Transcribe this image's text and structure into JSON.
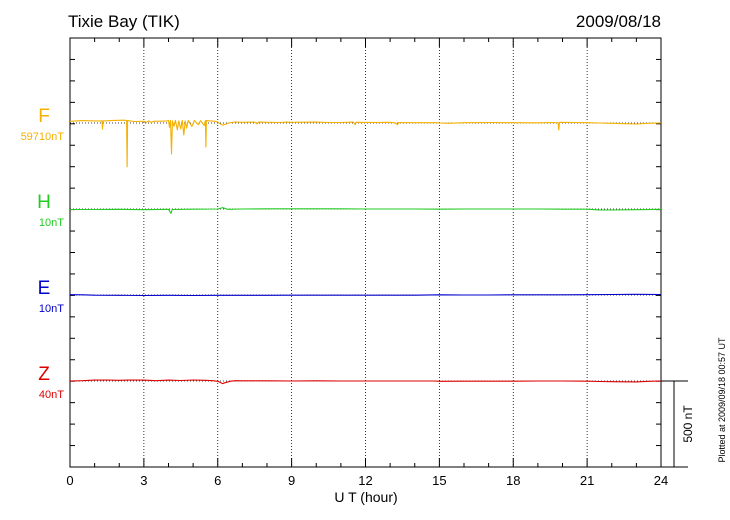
{
  "header": {
    "station": "Tixie Bay (TIK)",
    "date": "2009/08/18"
  },
  "footer": {
    "plotted": "Plotted at 2009/09/18 00:57 UT"
  },
  "scale": {
    "label": "500 nT",
    "nT": 500
  },
  "chart_data": {
    "type": "line",
    "xlabel": "U T (hour)",
    "xlim": [
      0,
      24
    ],
    "xticks": [
      0,
      3,
      6,
      9,
      12,
      15,
      18,
      21,
      24
    ],
    "xtick_labels": [
      "0",
      "3",
      "6",
      "9",
      "12",
      "15",
      "18",
      "21",
      "24"
    ],
    "grid": true,
    "y_units": "nT relative to channel baseline",
    "series": [
      {
        "name": "F",
        "value_label": "59710nT",
        "color": "#f5b000",
        "points": [
          [
            0,
            10
          ],
          [
            0.5,
            14
          ],
          [
            1.0,
            12
          ],
          [
            1.3,
            12
          ],
          [
            1.32,
            -35
          ],
          [
            1.34,
            12
          ],
          [
            1.8,
            15
          ],
          [
            2.2,
            16
          ],
          [
            2.3,
            14
          ],
          [
            2.32,
            -255
          ],
          [
            2.34,
            14
          ],
          [
            2.6,
            9
          ],
          [
            3.0,
            10
          ],
          [
            3.1,
            4
          ],
          [
            3.2,
            12
          ],
          [
            3.3,
            3
          ],
          [
            3.4,
            10
          ],
          [
            3.9,
            11
          ],
          [
            4.0,
            15
          ],
          [
            4.04,
            -25
          ],
          [
            4.08,
            15
          ],
          [
            4.12,
            -180
          ],
          [
            4.16,
            12
          ],
          [
            4.22,
            -20
          ],
          [
            4.28,
            15
          ],
          [
            4.36,
            -40
          ],
          [
            4.42,
            12
          ],
          [
            4.5,
            -35
          ],
          [
            4.56,
            15
          ],
          [
            4.62,
            -70
          ],
          [
            4.68,
            12
          ],
          [
            4.74,
            -30
          ],
          [
            4.8,
            15
          ],
          [
            4.95,
            -20
          ],
          [
            5.05,
            15
          ],
          [
            5.2,
            -10
          ],
          [
            5.3,
            14
          ],
          [
            5.45,
            -15
          ],
          [
            5.5,
            14
          ],
          [
            5.52,
            -140
          ],
          [
            5.54,
            14
          ],
          [
            5.7,
            12
          ],
          [
            5.9,
            10
          ],
          [
            6.0,
            5
          ],
          [
            6.1,
            -5
          ],
          [
            6.2,
            -12
          ],
          [
            6.35,
            -5
          ],
          [
            6.5,
            2
          ],
          [
            6.7,
            6
          ],
          [
            7.0,
            4
          ],
          [
            7.5,
            5
          ],
          [
            7.6,
            -5
          ],
          [
            7.65,
            5
          ],
          [
            8.0,
            4
          ],
          [
            8.5,
            3
          ],
          [
            8.8,
            5
          ],
          [
            9.0,
            4
          ],
          [
            10.0,
            5
          ],
          [
            10.5,
            3
          ],
          [
            11.0,
            3
          ],
          [
            11.5,
            5
          ],
          [
            11.58,
            -10
          ],
          [
            11.62,
            4
          ],
          [
            12.5,
            3
          ],
          [
            13.0,
            4
          ],
          [
            13.2,
            1
          ],
          [
            13.3,
            -10
          ],
          [
            13.35,
            3
          ],
          [
            14.0,
            2
          ],
          [
            14.6,
            2
          ],
          [
            14.9,
            2
          ],
          [
            15.0,
            0
          ],
          [
            15.4,
            -2
          ],
          [
            16.0,
            2
          ],
          [
            17.0,
            3
          ],
          [
            18.0,
            2
          ],
          [
            19.0,
            1
          ],
          [
            19.5,
            3
          ],
          [
            19.82,
            2
          ],
          [
            19.85,
            -40
          ],
          [
            19.88,
            4
          ],
          [
            20.5,
            3
          ],
          [
            21.0,
            2
          ],
          [
            21.5,
            0
          ],
          [
            22.0,
            -2
          ],
          [
            22.5,
            -4
          ],
          [
            23.0,
            -6
          ],
          [
            23.5,
            -2
          ],
          [
            24.0,
            0
          ]
        ]
      },
      {
        "name": "H",
        "value_label": "10nT",
        "color": "#22cc22",
        "points": [
          [
            0,
            -3
          ],
          [
            1.0,
            -3
          ],
          [
            2.0,
            -2
          ],
          [
            3.0,
            -4
          ],
          [
            4.0,
            -2
          ],
          [
            4.1,
            -25
          ],
          [
            4.15,
            -3
          ],
          [
            5.0,
            -1
          ],
          [
            6.0,
            0
          ],
          [
            6.2,
            8
          ],
          [
            6.4,
            -2
          ],
          [
            7.0,
            0
          ],
          [
            8.0,
            1
          ],
          [
            9.0,
            1
          ],
          [
            10.0,
            1
          ],
          [
            11.0,
            1
          ],
          [
            12.0,
            0
          ],
          [
            13.0,
            0
          ],
          [
            14.0,
            0
          ],
          [
            15.0,
            -1
          ],
          [
            16.0,
            0
          ],
          [
            17.0,
            0
          ],
          [
            18.0,
            0
          ],
          [
            19.0,
            0
          ],
          [
            20.0,
            -1
          ],
          [
            21.0,
            -1
          ],
          [
            21.5,
            -5
          ],
          [
            22.0,
            -6
          ],
          [
            23.0,
            -4
          ],
          [
            24.0,
            -2
          ]
        ]
      },
      {
        "name": "E",
        "value_label": "10nT",
        "color": "#0000cc",
        "points": [
          [
            0,
            2
          ],
          [
            0.5,
            1
          ],
          [
            1.0,
            -1
          ],
          [
            2.0,
            -2
          ],
          [
            3.0,
            -3
          ],
          [
            4.0,
            -2
          ],
          [
            5.0,
            -3
          ],
          [
            6.0,
            -2
          ],
          [
            7.0,
            -2
          ],
          [
            8.0,
            -2
          ],
          [
            9.0,
            -1
          ],
          [
            10.0,
            -1
          ],
          [
            11.0,
            -1
          ],
          [
            12.0,
            -1
          ],
          [
            13.0,
            -1
          ],
          [
            14.0,
            -1
          ],
          [
            15.0,
            1
          ],
          [
            16.0,
            0
          ],
          [
            17.0,
            0
          ],
          [
            18.0,
            1
          ],
          [
            19.0,
            1
          ],
          [
            20.0,
            1
          ],
          [
            21.0,
            2
          ],
          [
            22.0,
            3
          ],
          [
            23.0,
            4
          ],
          [
            24.0,
            3
          ]
        ]
      },
      {
        "name": "Z",
        "value_label": "40nT",
        "color": "#dd0000",
        "points": [
          [
            0,
            0
          ],
          [
            0.5,
            2
          ],
          [
            1.0,
            5
          ],
          [
            1.5,
            6
          ],
          [
            2.0,
            4
          ],
          [
            2.5,
            6
          ],
          [
            3.0,
            5
          ],
          [
            3.5,
            2
          ],
          [
            4.0,
            5
          ],
          [
            4.5,
            3
          ],
          [
            5.0,
            6
          ],
          [
            5.5,
            4
          ],
          [
            5.8,
            2
          ],
          [
            6.0,
            -2
          ],
          [
            6.1,
            -8
          ],
          [
            6.2,
            -15
          ],
          [
            6.3,
            -10
          ],
          [
            6.5,
            -2
          ],
          [
            6.7,
            2
          ],
          [
            7.0,
            1
          ],
          [
            8.0,
            1
          ],
          [
            9.0,
            0
          ],
          [
            10.0,
            1
          ],
          [
            11.0,
            0
          ],
          [
            12.0,
            0
          ],
          [
            13.0,
            0
          ],
          [
            14.0,
            0
          ],
          [
            14.8,
            0
          ],
          [
            15.0,
            -2
          ],
          [
            16.0,
            -1
          ],
          [
            17.0,
            -1
          ],
          [
            18.0,
            -1
          ],
          [
            19.0,
            0
          ],
          [
            20.0,
            0
          ],
          [
            21.0,
            -1
          ],
          [
            21.5,
            -3
          ],
          [
            22.0,
            -4
          ],
          [
            23.0,
            -5
          ],
          [
            23.5,
            -2
          ],
          [
            24.0,
            0
          ]
        ]
      }
    ]
  }
}
